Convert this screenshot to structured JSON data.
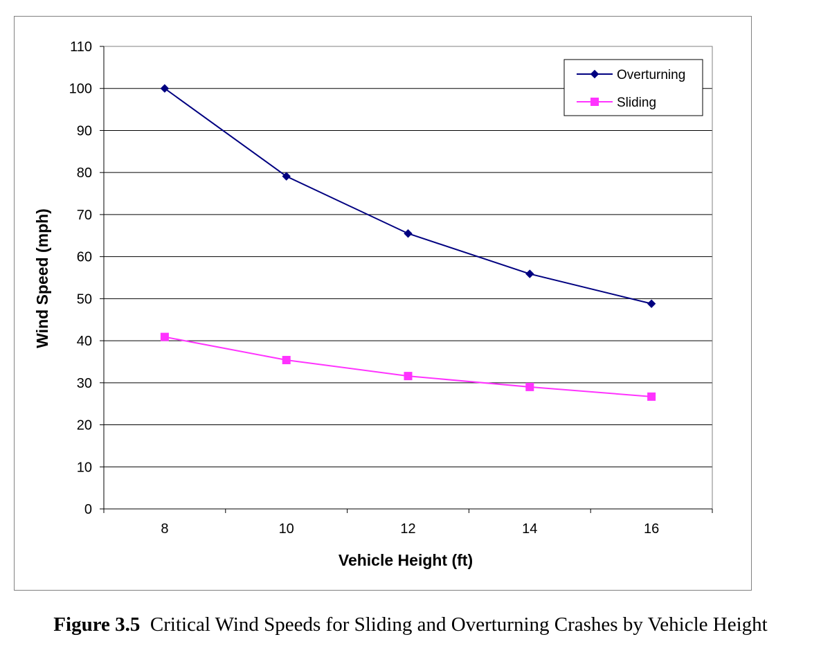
{
  "chart_data": {
    "type": "line",
    "title": "",
    "xlabel": "Vehicle Height (ft)",
    "ylabel": "Wind Speed (mph)",
    "x": [
      8,
      10,
      12,
      14,
      16
    ],
    "ylim": [
      0,
      110
    ],
    "yticks": [
      0,
      10,
      20,
      30,
      40,
      50,
      60,
      70,
      80,
      90,
      100,
      110
    ],
    "grid": true,
    "legend": "top-right",
    "series": [
      {
        "name": "Overturning",
        "values": [
          100,
          79.1,
          65.5,
          55.9,
          48.8
        ],
        "color": "#000080",
        "marker": "diamond"
      },
      {
        "name": "Sliding",
        "values": [
          40.9,
          35.4,
          31.6,
          29.0,
          26.7
        ],
        "color": "#ff33ff",
        "marker": "square"
      }
    ]
  },
  "caption": {
    "label": "Figure 3.5",
    "text": "Critical Wind Speeds for Sliding and Overturning Crashes by Vehicle Height"
  }
}
